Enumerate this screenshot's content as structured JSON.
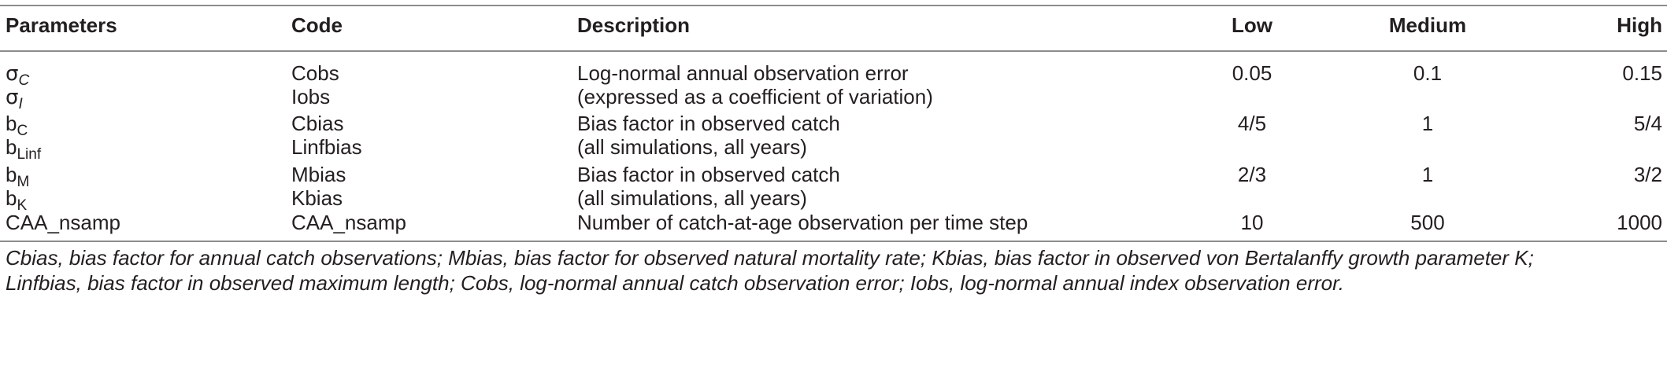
{
  "headers": {
    "parameters": "Parameters",
    "code": "Code",
    "description": "Description",
    "low": "Low",
    "medium": "Medium",
    "high": "High"
  },
  "rows": [
    {
      "param_base": "σ",
      "param_sub": "C",
      "code": "Cobs",
      "description": "Log-normal annual observation error",
      "low": "0.05",
      "medium": "0.1",
      "high": "0.15"
    },
    {
      "param_base": "σ",
      "param_sub": "I",
      "code": "Iobs",
      "description": "(expressed as a coefficient of variation)",
      "low": "",
      "medium": "",
      "high": ""
    },
    {
      "param_base": "b",
      "param_sub": "C",
      "code": "Cbias",
      "description": "Bias factor in observed catch",
      "low": "4/5",
      "medium": "1",
      "high": "5/4"
    },
    {
      "param_base": "b",
      "param_sub": "Linf",
      "code": "Linfbias",
      "description": "(all simulations, all years)",
      "low": "",
      "medium": "",
      "high": ""
    },
    {
      "param_base": "b",
      "param_sub": "M",
      "code": "Mbias",
      "description": "Bias factor in observed catch",
      "low": "2/3",
      "medium": "1",
      "high": "3/2"
    },
    {
      "param_base": "b",
      "param_sub": "K",
      "code": "Kbias",
      "description": "(all simulations, all years)",
      "low": "",
      "medium": "",
      "high": ""
    },
    {
      "param_base": "CAA_nsamp",
      "param_sub": "",
      "code": "CAA_nsamp",
      "description": "Number of catch-at-age observation per time step",
      "low": "10",
      "medium": "500",
      "high": "1000"
    }
  ],
  "footnote": {
    "line1": "Cbias, bias factor for annual catch observations; Mbias, bias factor for observed natural mortality rate; Kbias, bias factor in observed von Bertalanffy growth parameter K;",
    "line2": "Linfbias, bias factor in observed maximum length; Cobs, log-normal annual catch observation error; Iobs, log-normal annual index observation error."
  }
}
